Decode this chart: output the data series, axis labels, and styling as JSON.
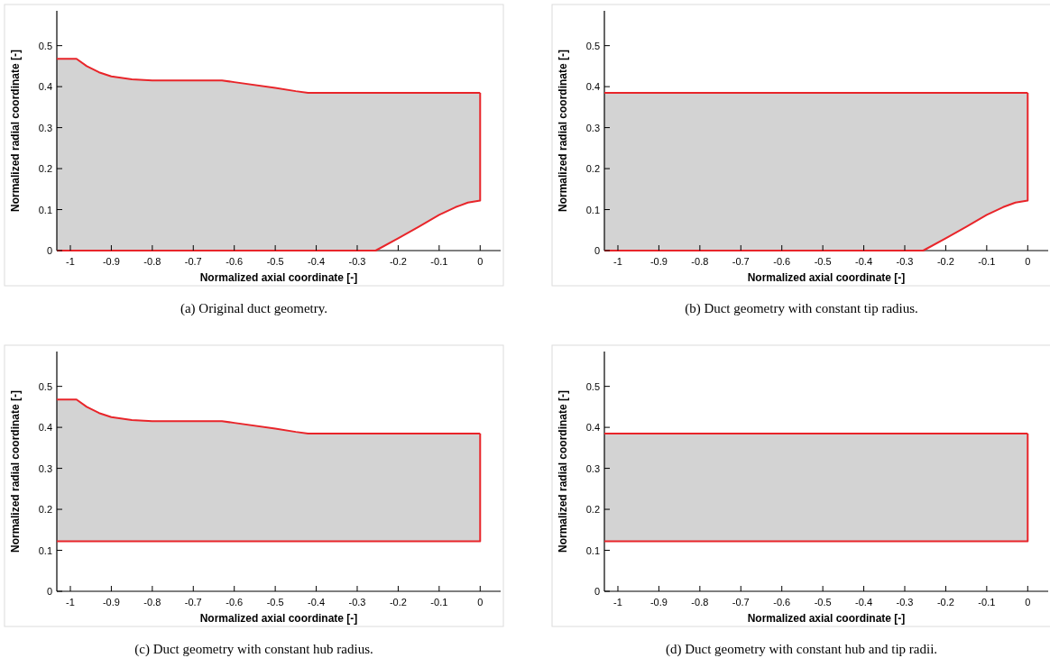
{
  "chart_data": [
    {
      "type": "line",
      "title": "(a) Original duct geometry.",
      "xlabel": "Normalized axial coordinate [-]",
      "ylabel": "Normalized radial coordinate [-]",
      "xlim": [
        -1.033,
        0.05
      ],
      "ylim": [
        0,
        0.585
      ],
      "xticks": [
        -1,
        -0.9,
        -0.8,
        -0.7,
        -0.6,
        -0.5,
        -0.4,
        -0.3,
        -0.2,
        -0.1,
        0
      ],
      "yticks": [
        0,
        0.1,
        0.2,
        0.3,
        0.4,
        0.5
      ],
      "series": [
        {
          "color": "#e8252a",
          "x": [
            -1.033,
            -0.985,
            -0.96,
            -0.93,
            -0.9,
            -0.85,
            -0.8,
            -0.63,
            -0.6,
            -0.5,
            -0.45,
            -0.42,
            -0.255,
            -0.2,
            -0.15,
            -0.1,
            -0.06,
            -0.03,
            0
          ],
          "values": [
            0.468,
            0.468,
            0.45,
            0.435,
            0.425,
            0.418,
            0.415,
            0.415,
            0.411,
            0.397,
            0.389,
            0.385,
            0.385,
            0.385,
            0.385,
            0.385,
            0.385,
            0.385,
            0.385
          ],
          "lower": [
            0,
            0,
            0,
            0,
            0,
            0,
            0,
            0,
            0,
            0,
            0,
            0,
            0,
            0.03,
            0.058,
            0.087,
            0.106,
            0.117,
            0.122
          ],
          "upper": [
            0.468,
            0.468,
            0.45,
            0.435,
            0.425,
            0.418,
            0.415,
            0.415,
            0.411,
            0.397,
            0.389,
            0.385,
            0.385,
            0.385,
            0.385,
            0.385,
            0.385,
            0.385,
            0.385
          ]
        },
        {
          "color": "#e8252a",
          "x": [
            -1.033,
            -0.255,
            -0.2,
            -0.15,
            -0.1,
            -0.06,
            -0.03,
            0,
            0
          ],
          "values": [
            0,
            0,
            0.03,
            0.058,
            0.087,
            0.106,
            0.117,
            0.122,
            0.385
          ]
        }
      ]
    },
    {
      "type": "line",
      "title": "(b) Duct geometry with constant tip radius.",
      "xlabel": "Normalized axial coordinate [-]",
      "ylabel": "Normalized radial coordinate [-]",
      "xlim": [
        -1.033,
        0.05
      ],
      "ylim": [
        0,
        0.585
      ],
      "xticks": [
        -1,
        -0.9,
        -0.8,
        -0.7,
        -0.6,
        -0.5,
        -0.4,
        -0.3,
        -0.2,
        -0.1,
        0
      ],
      "yticks": [
        0,
        0.1,
        0.2,
        0.3,
        0.4,
        0.5
      ],
      "series": [
        {
          "color": "#e8252a",
          "x": [
            -1.033,
            -0.255,
            -0.2,
            -0.15,
            -0.1,
            -0.06,
            -0.03,
            0
          ],
          "values": [
            0.385,
            0.385,
            0.385,
            0.385,
            0.385,
            0.385,
            0.385,
            0.385
          ],
          "lower": [
            0,
            0,
            0.03,
            0.058,
            0.087,
            0.106,
            0.117,
            0.122
          ],
          "upper": [
            0.385,
            0.385,
            0.385,
            0.385,
            0.385,
            0.385,
            0.385,
            0.385
          ]
        },
        {
          "color": "#e8252a",
          "x": [
            -1.033,
            -0.255,
            -0.2,
            -0.15,
            -0.1,
            -0.06,
            -0.03,
            0,
            0
          ],
          "values": [
            0,
            0,
            0.03,
            0.058,
            0.087,
            0.106,
            0.117,
            0.122,
            0.385
          ]
        }
      ]
    },
    {
      "type": "line",
      "title": "(c) Duct geometry with constant hub radius.",
      "xlabel": "Normalized axial coordinate [-]",
      "ylabel": "Normalized radial coordinate [-]",
      "xlim": [
        -1.033,
        0.05
      ],
      "ylim": [
        0,
        0.585
      ],
      "xticks": [
        -1,
        -0.9,
        -0.8,
        -0.7,
        -0.6,
        -0.5,
        -0.4,
        -0.3,
        -0.2,
        -0.1,
        0
      ],
      "yticks": [
        0,
        0.1,
        0.2,
        0.3,
        0.4,
        0.5
      ],
      "series": [
        {
          "color": "#e8252a",
          "x": [
            -1.033,
            -0.985,
            -0.96,
            -0.93,
            -0.9,
            -0.85,
            -0.8,
            -0.63,
            -0.6,
            -0.5,
            -0.45,
            -0.42,
            0
          ],
          "values": [
            0.468,
            0.468,
            0.45,
            0.435,
            0.425,
            0.418,
            0.415,
            0.415,
            0.411,
            0.397,
            0.389,
            0.385,
            0.385
          ],
          "lower": [
            0.122,
            0.122,
            0.122,
            0.122,
            0.122,
            0.122,
            0.122,
            0.122,
            0.122,
            0.122,
            0.122,
            0.122,
            0.122
          ],
          "upper": [
            0.468,
            0.468,
            0.45,
            0.435,
            0.425,
            0.418,
            0.415,
            0.415,
            0.411,
            0.397,
            0.389,
            0.385,
            0.385
          ]
        },
        {
          "color": "#e8252a",
          "x": [
            -1.033,
            0,
            0
          ],
          "values": [
            0.122,
            0.122,
            0.385
          ]
        }
      ]
    },
    {
      "type": "line",
      "title": "(d) Duct geometry with constant hub and tip radii.",
      "xlabel": "Normalized axial coordinate [-]",
      "ylabel": "Normalized radial coordinate [-]",
      "xlim": [
        -1.033,
        0.05
      ],
      "ylim": [
        0,
        0.585
      ],
      "xticks": [
        -1,
        -0.9,
        -0.8,
        -0.7,
        -0.6,
        -0.5,
        -0.4,
        -0.3,
        -0.2,
        -0.1,
        0
      ],
      "yticks": [
        0,
        0.1,
        0.2,
        0.3,
        0.4,
        0.5
      ],
      "series": [
        {
          "color": "#e8252a",
          "x": [
            -1.033,
            0
          ],
          "values": [
            0.385,
            0.385
          ],
          "lower": [
            0.122,
            0.122
          ],
          "upper": [
            0.385,
            0.385
          ]
        },
        {
          "color": "#e8252a",
          "x": [
            -1.033,
            0,
            0
          ],
          "values": [
            0.122,
            0.122,
            0.385
          ]
        }
      ]
    }
  ]
}
